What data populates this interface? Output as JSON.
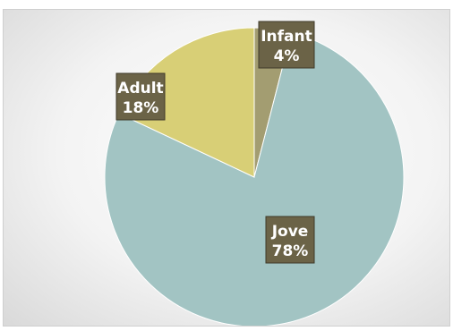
{
  "chart_data": {
    "type": "pie",
    "categories": [
      "Infant",
      "Jove",
      "Adult"
    ],
    "values": [
      4,
      78,
      18
    ],
    "value_labels": [
      "4%",
      "78%",
      "18%"
    ],
    "colors": [
      "#a39d71",
      "#a2c4c3",
      "#d8cf76"
    ],
    "label_background": "#6b6347",
    "title": "",
    "legend": "none"
  }
}
